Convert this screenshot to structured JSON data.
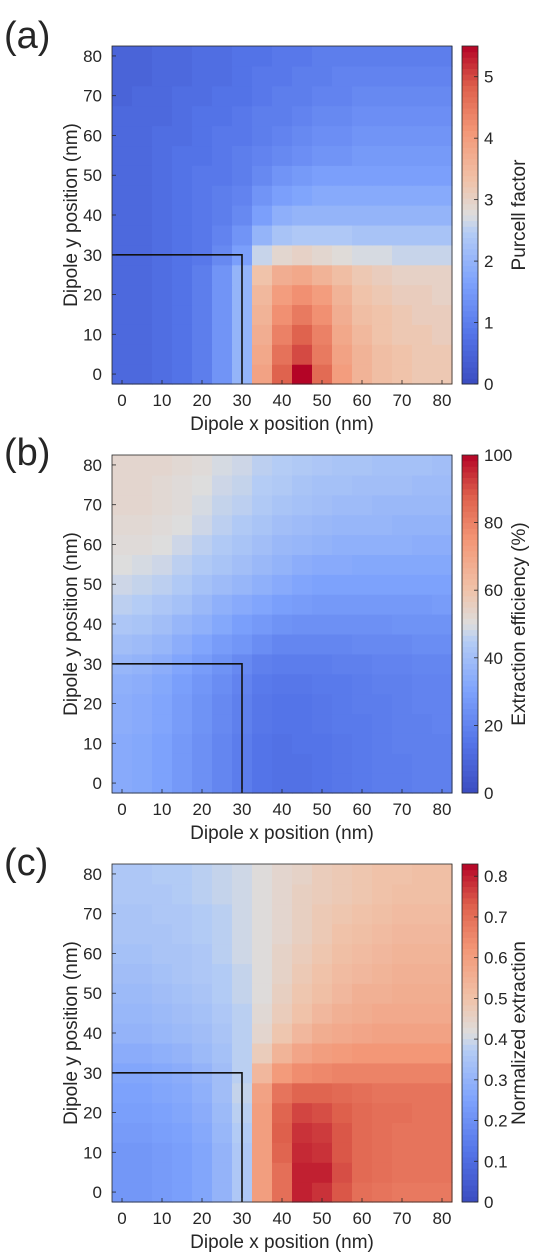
{
  "chart_data": [
    {
      "type": "heatmap",
      "panel_label": "(a)",
      "xlabel": "Dipole x position (nm)",
      "ylabel": "Dipole y position (nm)",
      "colorbar_label": "Purcell factor",
      "x": [
        0,
        5,
        10,
        15,
        20,
        25,
        30,
        35,
        40,
        45,
        50,
        55,
        60,
        65,
        70,
        75,
        80
      ],
      "y": [
        0,
        5,
        10,
        15,
        20,
        25,
        30,
        35,
        40,
        45,
        50,
        55,
        60,
        65,
        70,
        75,
        80
      ],
      "xticks": [
        0,
        10,
        20,
        30,
        40,
        50,
        60,
        70,
        80
      ],
      "yticks": [
        0,
        10,
        20,
        30,
        40,
        50,
        60,
        70,
        80
      ],
      "clim": [
        0,
        5.5
      ],
      "cticks": [
        0,
        1,
        2,
        3,
        4,
        5
      ],
      "overlay_corner": [
        30,
        30
      ],
      "values": [
        [
          0.6,
          0.6,
          0.7,
          0.8,
          1.0,
          1.4,
          2.0,
          3.9,
          4.8,
          5.5,
          4.7,
          4.0,
          3.6,
          3.4,
          3.3,
          3.2,
          3.2
        ],
        [
          0.6,
          0.6,
          0.7,
          0.8,
          1.0,
          1.4,
          2.0,
          3.8,
          4.6,
          5.0,
          4.5,
          3.9,
          3.6,
          3.4,
          3.3,
          3.2,
          3.2
        ],
        [
          0.6,
          0.6,
          0.7,
          0.8,
          1.0,
          1.4,
          2.0,
          3.7,
          4.4,
          4.8,
          4.4,
          3.8,
          3.5,
          3.3,
          3.2,
          3.2,
          3.1
        ],
        [
          0.6,
          0.6,
          0.7,
          0.8,
          1.0,
          1.4,
          2.0,
          3.6,
          4.2,
          4.5,
          4.2,
          3.7,
          3.4,
          3.3,
          3.2,
          3.1,
          3.1
        ],
        [
          0.6,
          0.6,
          0.7,
          0.8,
          1.0,
          1.4,
          2.0,
          3.5,
          4.0,
          4.2,
          4.0,
          3.6,
          3.3,
          3.2,
          3.1,
          3.1,
          3.0
        ],
        [
          0.6,
          0.6,
          0.7,
          0.8,
          1.0,
          1.4,
          2.0,
          3.3,
          3.7,
          3.8,
          3.6,
          3.4,
          3.2,
          3.1,
          3.0,
          3.0,
          3.0
        ],
        [
          0.6,
          0.6,
          0.7,
          0.8,
          0.9,
          1.2,
          1.6,
          2.6,
          2.9,
          3.0,
          2.9,
          2.8,
          2.7,
          2.7,
          2.6,
          2.6,
          2.6
        ],
        [
          0.6,
          0.6,
          0.7,
          0.8,
          0.9,
          1.1,
          1.4,
          2.0,
          2.3,
          2.4,
          2.4,
          2.4,
          2.3,
          2.3,
          2.3,
          2.3,
          2.3
        ],
        [
          0.6,
          0.6,
          0.7,
          0.8,
          0.9,
          1.0,
          1.2,
          1.6,
          1.9,
          2.0,
          2.0,
          2.0,
          2.0,
          2.0,
          2.0,
          2.0,
          2.0
        ],
        [
          0.6,
          0.6,
          0.7,
          0.8,
          0.9,
          1.0,
          1.1,
          1.4,
          1.6,
          1.7,
          1.8,
          1.8,
          1.8,
          1.8,
          1.8,
          1.8,
          1.8
        ],
        [
          0.6,
          0.6,
          0.7,
          0.8,
          0.9,
          0.9,
          1.0,
          1.2,
          1.4,
          1.5,
          1.6,
          1.6,
          1.6,
          1.6,
          1.6,
          1.6,
          1.6
        ],
        [
          0.6,
          0.6,
          0.7,
          0.8,
          0.8,
          0.9,
          1.0,
          1.1,
          1.2,
          1.3,
          1.4,
          1.4,
          1.5,
          1.5,
          1.5,
          1.5,
          1.5
        ],
        [
          0.6,
          0.6,
          0.7,
          0.7,
          0.8,
          0.9,
          0.9,
          1.0,
          1.1,
          1.2,
          1.3,
          1.3,
          1.4,
          1.4,
          1.4,
          1.4,
          1.4
        ],
        [
          0.6,
          0.6,
          0.6,
          0.7,
          0.8,
          0.8,
          0.9,
          1.0,
          1.0,
          1.1,
          1.2,
          1.2,
          1.3,
          1.3,
          1.3,
          1.3,
          1.3
        ],
        [
          0.5,
          0.6,
          0.6,
          0.7,
          0.7,
          0.8,
          0.8,
          0.9,
          1.0,
          1.0,
          1.1,
          1.1,
          1.2,
          1.2,
          1.2,
          1.2,
          1.2
        ],
        [
          0.5,
          0.5,
          0.6,
          0.6,
          0.7,
          0.7,
          0.8,
          0.9,
          0.9,
          1.0,
          1.0,
          1.1,
          1.1,
          1.1,
          1.1,
          1.1,
          1.1
        ],
        [
          0.5,
          0.5,
          0.6,
          0.6,
          0.7,
          0.7,
          0.8,
          0.8,
          0.9,
          0.9,
          1.0,
          1.0,
          1.0,
          1.0,
          1.0,
          1.0,
          1.0
        ]
      ]
    },
    {
      "type": "heatmap",
      "panel_label": "(b)",
      "xlabel": "Dipole x position (nm)",
      "ylabel": "Dipole y position (nm)",
      "colorbar_label": "Extraction efficiency (%)",
      "x": [
        0,
        5,
        10,
        15,
        20,
        25,
        30,
        35,
        40,
        45,
        50,
        55,
        60,
        65,
        70,
        75,
        80
      ],
      "y": [
        0,
        5,
        10,
        15,
        20,
        25,
        30,
        35,
        40,
        45,
        50,
        55,
        60,
        65,
        70,
        75,
        80
      ],
      "xticks": [
        0,
        10,
        20,
        30,
        40,
        50,
        60,
        70,
        80
      ],
      "yticks": [
        0,
        10,
        20,
        30,
        40,
        50,
        60,
        70,
        80
      ],
      "clim": [
        0,
        100
      ],
      "cticks": [
        0,
        20,
        40,
        60,
        80,
        100
      ],
      "overlay_corner": [
        30,
        30
      ],
      "values": [
        [
          33,
          32,
          30,
          27,
          24,
          21,
          18,
          15,
          14,
          14,
          15,
          16,
          17,
          18,
          18,
          19,
          19
        ],
        [
          33,
          32,
          30,
          27,
          24,
          21,
          18,
          15,
          14,
          14,
          15,
          16,
          17,
          18,
          18,
          19,
          19
        ],
        [
          33,
          32,
          30,
          27,
          24,
          21,
          18,
          15,
          14,
          15,
          15,
          16,
          17,
          18,
          19,
          19,
          19
        ],
        [
          34,
          33,
          31,
          28,
          25,
          22,
          19,
          16,
          15,
          15,
          16,
          17,
          17,
          18,
          19,
          19,
          20
        ],
        [
          34,
          33,
          31,
          28,
          25,
          22,
          19,
          16,
          15,
          15,
          16,
          17,
          18,
          18,
          19,
          20,
          20
        ],
        [
          35,
          34,
          32,
          29,
          26,
          23,
          20,
          17,
          16,
          16,
          17,
          17,
          18,
          19,
          19,
          20,
          20
        ],
        [
          37,
          36,
          34,
          31,
          28,
          25,
          22,
          19,
          18,
          18,
          18,
          19,
          19,
          20,
          20,
          21,
          21
        ],
        [
          40,
          39,
          37,
          34,
          31,
          28,
          26,
          23,
          21,
          21,
          21,
          21,
          22,
          22,
          22,
          23,
          23
        ],
        [
          43,
          42,
          40,
          37,
          35,
          32,
          29,
          27,
          25,
          24,
          24,
          24,
          24,
          24,
          25,
          25,
          25
        ],
        [
          46,
          45,
          43,
          41,
          38,
          35,
          33,
          31,
          29,
          28,
          27,
          27,
          27,
          27,
          27,
          27,
          28
        ],
        [
          48,
          47,
          46,
          44,
          41,
          39,
          37,
          35,
          33,
          31,
          30,
          30,
          30,
          30,
          30,
          30,
          30
        ],
        [
          50,
          49,
          48,
          46,
          44,
          42,
          40,
          38,
          36,
          34,
          33,
          33,
          32,
          32,
          32,
          32,
          32
        ],
        [
          51,
          51,
          50,
          48,
          46,
          44,
          42,
          40,
          38,
          37,
          36,
          35,
          35,
          35,
          35,
          34,
          34
        ],
        [
          52,
          52,
          51,
          50,
          48,
          46,
          44,
          42,
          40,
          39,
          38,
          37,
          37,
          37,
          36,
          36,
          36
        ],
        [
          53,
          53,
          52,
          51,
          49,
          47,
          46,
          44,
          42,
          41,
          40,
          39,
          39,
          38,
          38,
          38,
          38
        ],
        [
          53,
          53,
          52,
          51,
          50,
          48,
          47,
          45,
          44,
          42,
          41,
          41,
          40,
          40,
          40,
          39,
          39
        ],
        [
          53,
          53,
          53,
          52,
          51,
          49,
          48,
          46,
          45,
          44,
          43,
          42,
          42,
          41,
          41,
          41,
          40
        ]
      ]
    },
    {
      "type": "heatmap",
      "panel_label": "(c)",
      "xlabel": "Dipole x position (nm)",
      "ylabel": "Dipole y position (nm)",
      "colorbar_label": "Normalized extraction",
      "x": [
        0,
        5,
        10,
        15,
        20,
        25,
        30,
        35,
        40,
        45,
        50,
        55,
        60,
        65,
        70,
        75,
        80
      ],
      "y": [
        0,
        5,
        10,
        15,
        20,
        25,
        30,
        35,
        40,
        45,
        50,
        55,
        60,
        65,
        70,
        75,
        80
      ],
      "xticks": [
        0,
        10,
        20,
        30,
        40,
        50,
        60,
        70,
        80
      ],
      "yticks": [
        0,
        10,
        20,
        30,
        40,
        50,
        60,
        70,
        80
      ],
      "clim": [
        0,
        0.83
      ],
      "cticks": [
        0,
        0.1,
        0.2,
        0.3,
        0.4,
        0.5,
        0.6,
        0.7,
        0.8
      ],
      "overlay_corner": [
        30,
        30
      ],
      "values": [
        [
          0.22,
          0.22,
          0.23,
          0.24,
          0.26,
          0.3,
          0.36,
          0.6,
          0.7,
          0.8,
          0.78,
          0.74,
          0.7,
          0.69,
          0.68,
          0.68,
          0.68
        ],
        [
          0.22,
          0.22,
          0.23,
          0.24,
          0.26,
          0.3,
          0.36,
          0.6,
          0.7,
          0.8,
          0.8,
          0.75,
          0.71,
          0.7,
          0.69,
          0.69,
          0.69
        ],
        [
          0.22,
          0.22,
          0.23,
          0.24,
          0.26,
          0.3,
          0.36,
          0.6,
          0.72,
          0.79,
          0.78,
          0.74,
          0.71,
          0.7,
          0.69,
          0.69,
          0.69
        ],
        [
          0.23,
          0.23,
          0.24,
          0.25,
          0.27,
          0.31,
          0.37,
          0.6,
          0.73,
          0.78,
          0.77,
          0.74,
          0.71,
          0.7,
          0.69,
          0.69,
          0.69
        ],
        [
          0.24,
          0.24,
          0.25,
          0.26,
          0.28,
          0.32,
          0.38,
          0.6,
          0.72,
          0.76,
          0.75,
          0.73,
          0.71,
          0.7,
          0.7,
          0.69,
          0.69
        ],
        [
          0.25,
          0.25,
          0.26,
          0.27,
          0.29,
          0.33,
          0.39,
          0.59,
          0.69,
          0.72,
          0.72,
          0.71,
          0.7,
          0.69,
          0.69,
          0.69,
          0.69
        ],
        [
          0.26,
          0.26,
          0.27,
          0.28,
          0.3,
          0.33,
          0.38,
          0.53,
          0.61,
          0.64,
          0.65,
          0.66,
          0.66,
          0.66,
          0.66,
          0.66,
          0.66
        ],
        [
          0.28,
          0.28,
          0.29,
          0.3,
          0.32,
          0.34,
          0.38,
          0.47,
          0.54,
          0.58,
          0.6,
          0.61,
          0.62,
          0.62,
          0.62,
          0.62,
          0.62
        ],
        [
          0.3,
          0.3,
          0.31,
          0.32,
          0.33,
          0.35,
          0.38,
          0.44,
          0.49,
          0.53,
          0.56,
          0.57,
          0.58,
          0.59,
          0.59,
          0.59,
          0.59
        ],
        [
          0.31,
          0.31,
          0.32,
          0.33,
          0.34,
          0.36,
          0.38,
          0.43,
          0.47,
          0.5,
          0.53,
          0.55,
          0.56,
          0.57,
          0.57,
          0.57,
          0.57
        ],
        [
          0.32,
          0.32,
          0.33,
          0.34,
          0.35,
          0.37,
          0.39,
          0.42,
          0.46,
          0.49,
          0.51,
          0.53,
          0.55,
          0.55,
          0.56,
          0.56,
          0.56
        ],
        [
          0.33,
          0.33,
          0.34,
          0.35,
          0.36,
          0.37,
          0.39,
          0.42,
          0.45,
          0.48,
          0.5,
          0.52,
          0.53,
          0.54,
          0.55,
          0.55,
          0.55
        ],
        [
          0.34,
          0.34,
          0.35,
          0.35,
          0.36,
          0.38,
          0.4,
          0.42,
          0.45,
          0.47,
          0.49,
          0.51,
          0.52,
          0.53,
          0.54,
          0.54,
          0.54
        ],
        [
          0.35,
          0.35,
          0.35,
          0.36,
          0.37,
          0.38,
          0.4,
          0.42,
          0.44,
          0.46,
          0.48,
          0.5,
          0.51,
          0.52,
          0.53,
          0.53,
          0.53
        ],
        [
          0.35,
          0.35,
          0.36,
          0.36,
          0.37,
          0.38,
          0.4,
          0.42,
          0.44,
          0.46,
          0.48,
          0.49,
          0.5,
          0.51,
          0.52,
          0.52,
          0.52
        ],
        [
          0.36,
          0.36,
          0.36,
          0.37,
          0.38,
          0.39,
          0.4,
          0.42,
          0.44,
          0.46,
          0.47,
          0.48,
          0.49,
          0.5,
          0.51,
          0.51,
          0.51
        ],
        [
          0.36,
          0.36,
          0.37,
          0.37,
          0.38,
          0.39,
          0.4,
          0.42,
          0.44,
          0.45,
          0.47,
          0.48,
          0.49,
          0.5,
          0.5,
          0.51,
          0.51
        ]
      ]
    }
  ]
}
